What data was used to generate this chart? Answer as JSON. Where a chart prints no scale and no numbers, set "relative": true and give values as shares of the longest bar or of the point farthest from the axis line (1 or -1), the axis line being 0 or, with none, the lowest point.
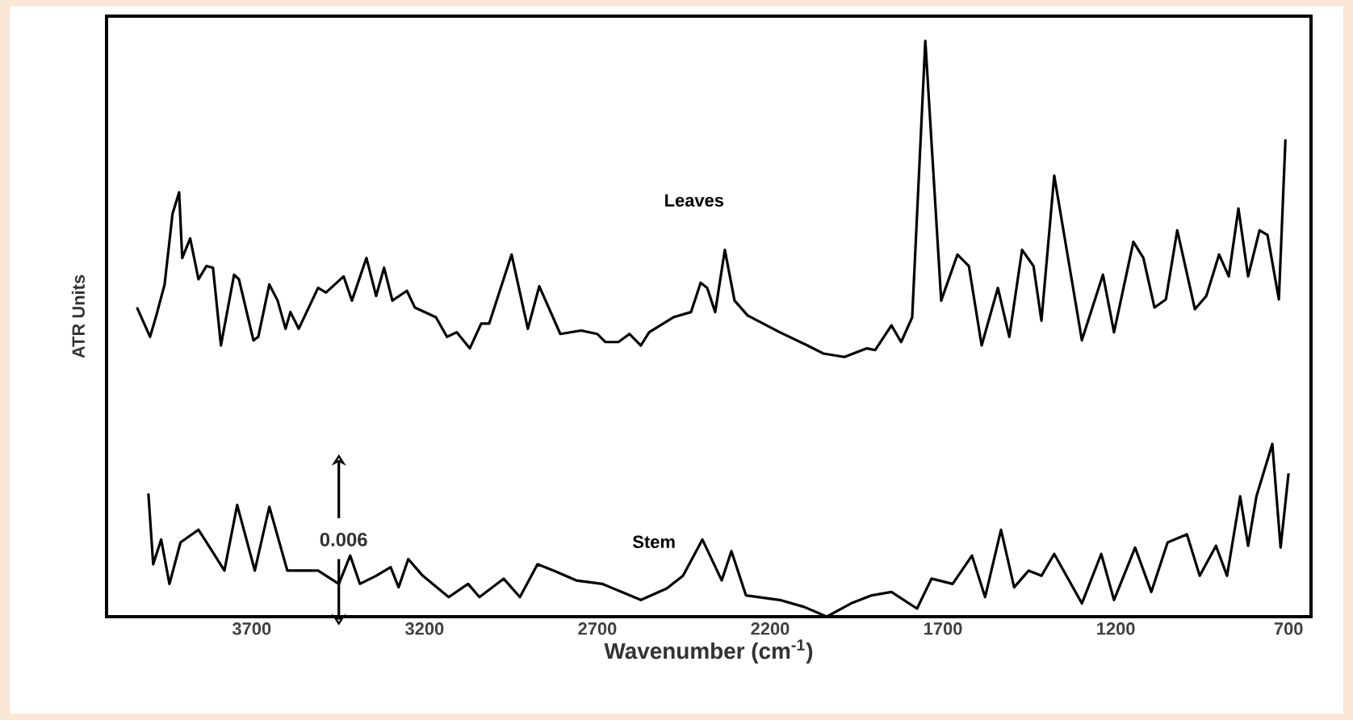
{
  "chart_data": {
    "type": "line",
    "relative": true,
    "xlabel": "Wavenumber (cm$^{-1}$)",
    "ylabel": "ATR Units",
    "xlim": [
      4120,
      635
    ],
    "xticks": [
      3700,
      3200,
      2700,
      2200,
      1700,
      1200,
      700
    ],
    "annotations": [
      "0.006"
    ],
    "series": [
      {
        "name": "Leaves",
        "color": "#000000",
        "x": [
          4032,
          3994,
          3976,
          3952,
          3929,
          3910,
          3901,
          3878,
          3854,
          3831,
          3812,
          3789,
          3751,
          3737,
          3695,
          3681,
          3649,
          3625,
          3602,
          3588,
          3564,
          3508,
          3485,
          3434,
          3410,
          3368,
          3340,
          3317,
          3293,
          3251,
          3228,
          3167,
          3135,
          3107,
          3069,
          3036,
          3013,
          2948,
          2901,
          2868,
          2807,
          2747,
          2700,
          2677,
          2639,
          2607,
          2574,
          2550,
          2480,
          2429,
          2401,
          2382,
          2359,
          2331,
          2303,
          2265,
          2172,
          2092,
          2046,
          1985,
          1920,
          1896,
          1849,
          1821,
          1789,
          1751,
          1705,
          1658,
          1625,
          1588,
          1541,
          1508,
          1471,
          1438,
          1415,
          1378,
          1298,
          1237,
          1205,
          1149,
          1120,
          1088,
          1055,
          1022,
          971,
          938,
          901,
          873,
          845,
          817,
          784,
          761,
          728,
          709
        ],
        "values": [
          0.537,
          0.486,
          0.523,
          0.577,
          0.7,
          0.737,
          0.623,
          0.657,
          0.586,
          0.609,
          0.606,
          0.471,
          0.594,
          0.586,
          0.48,
          0.486,
          0.577,
          0.549,
          0.5,
          0.529,
          0.5,
          0.571,
          0.563,
          0.591,
          0.549,
          0.623,
          0.557,
          0.606,
          0.549,
          0.566,
          0.537,
          0.52,
          0.486,
          0.494,
          0.466,
          0.509,
          0.509,
          0.629,
          0.5,
          0.574,
          0.491,
          0.497,
          0.491,
          0.477,
          0.477,
          0.491,
          0.471,
          0.494,
          0.52,
          0.529,
          0.58,
          0.571,
          0.529,
          0.637,
          0.549,
          0.523,
          0.494,
          0.471,
          0.457,
          0.451,
          0.466,
          0.463,
          0.506,
          0.477,
          0.52,
          1,
          0.549,
          0.629,
          0.609,
          0.471,
          0.571,
          0.486,
          0.637,
          0.609,
          0.514,
          0.766,
          0.48,
          0.594,
          0.494,
          0.651,
          0.623,
          0.537,
          0.551,
          0.671,
          0.534,
          0.557,
          0.629,
          0.591,
          0.709,
          0.591,
          0.671,
          0.663,
          0.551,
          0.829
        ]
      },
      {
        "name": "Stem",
        "color": "#000000",
        "x": [
          3999,
          3985,
          3962,
          3938,
          3906,
          3854,
          3821,
          3779,
          3742,
          3691,
          3649,
          3597,
          3508,
          3448,
          3415,
          3387,
          3340,
          3298,
          3275,
          3247,
          3205,
          3130,
          3074,
          3041,
          2971,
          2924,
          2873,
          2826,
          2761,
          2686,
          2574,
          2499,
          2452,
          2396,
          2340,
          2312,
          2270,
          2172,
          2102,
          2036,
          1966,
          1906,
          1849,
          1775,
          1733,
          1672,
          1616,
          1578,
          1532,
          1494,
          1452,
          1415,
          1378,
          1298,
          1242,
          1205,
          1144,
          1097,
          1050,
          994,
          957,
          910,
          878,
          840,
          817,
          793,
          747,
          723,
          700
        ],
        "values": [
          0.214,
          0.091,
          0.134,
          0.057,
          0.129,
          0.151,
          0.12,
          0.08,
          0.194,
          0.08,
          0.191,
          0.08,
          0.08,
          0.057,
          0.106,
          0.057,
          0.071,
          0.086,
          0.051,
          0.1,
          0.071,
          0.034,
          0.057,
          0.034,
          0.066,
          0.034,
          0.091,
          0.08,
          0.063,
          0.057,
          0.029,
          0.049,
          0.071,
          0.134,
          0.063,
          0.114,
          0.037,
          0.029,
          0.017,
          0,
          0.023,
          0.037,
          0.043,
          0.014,
          0.066,
          0.057,
          0.106,
          0.034,
          0.151,
          0.051,
          0.08,
          0.071,
          0.109,
          0.023,
          0.109,
          0.029,
          0.12,
          0.043,
          0.129,
          0.143,
          0.071,
          0.123,
          0.071,
          0.209,
          0.123,
          0.209,
          0.3,
          0.12,
          0.249
        ]
      }
    ]
  }
}
